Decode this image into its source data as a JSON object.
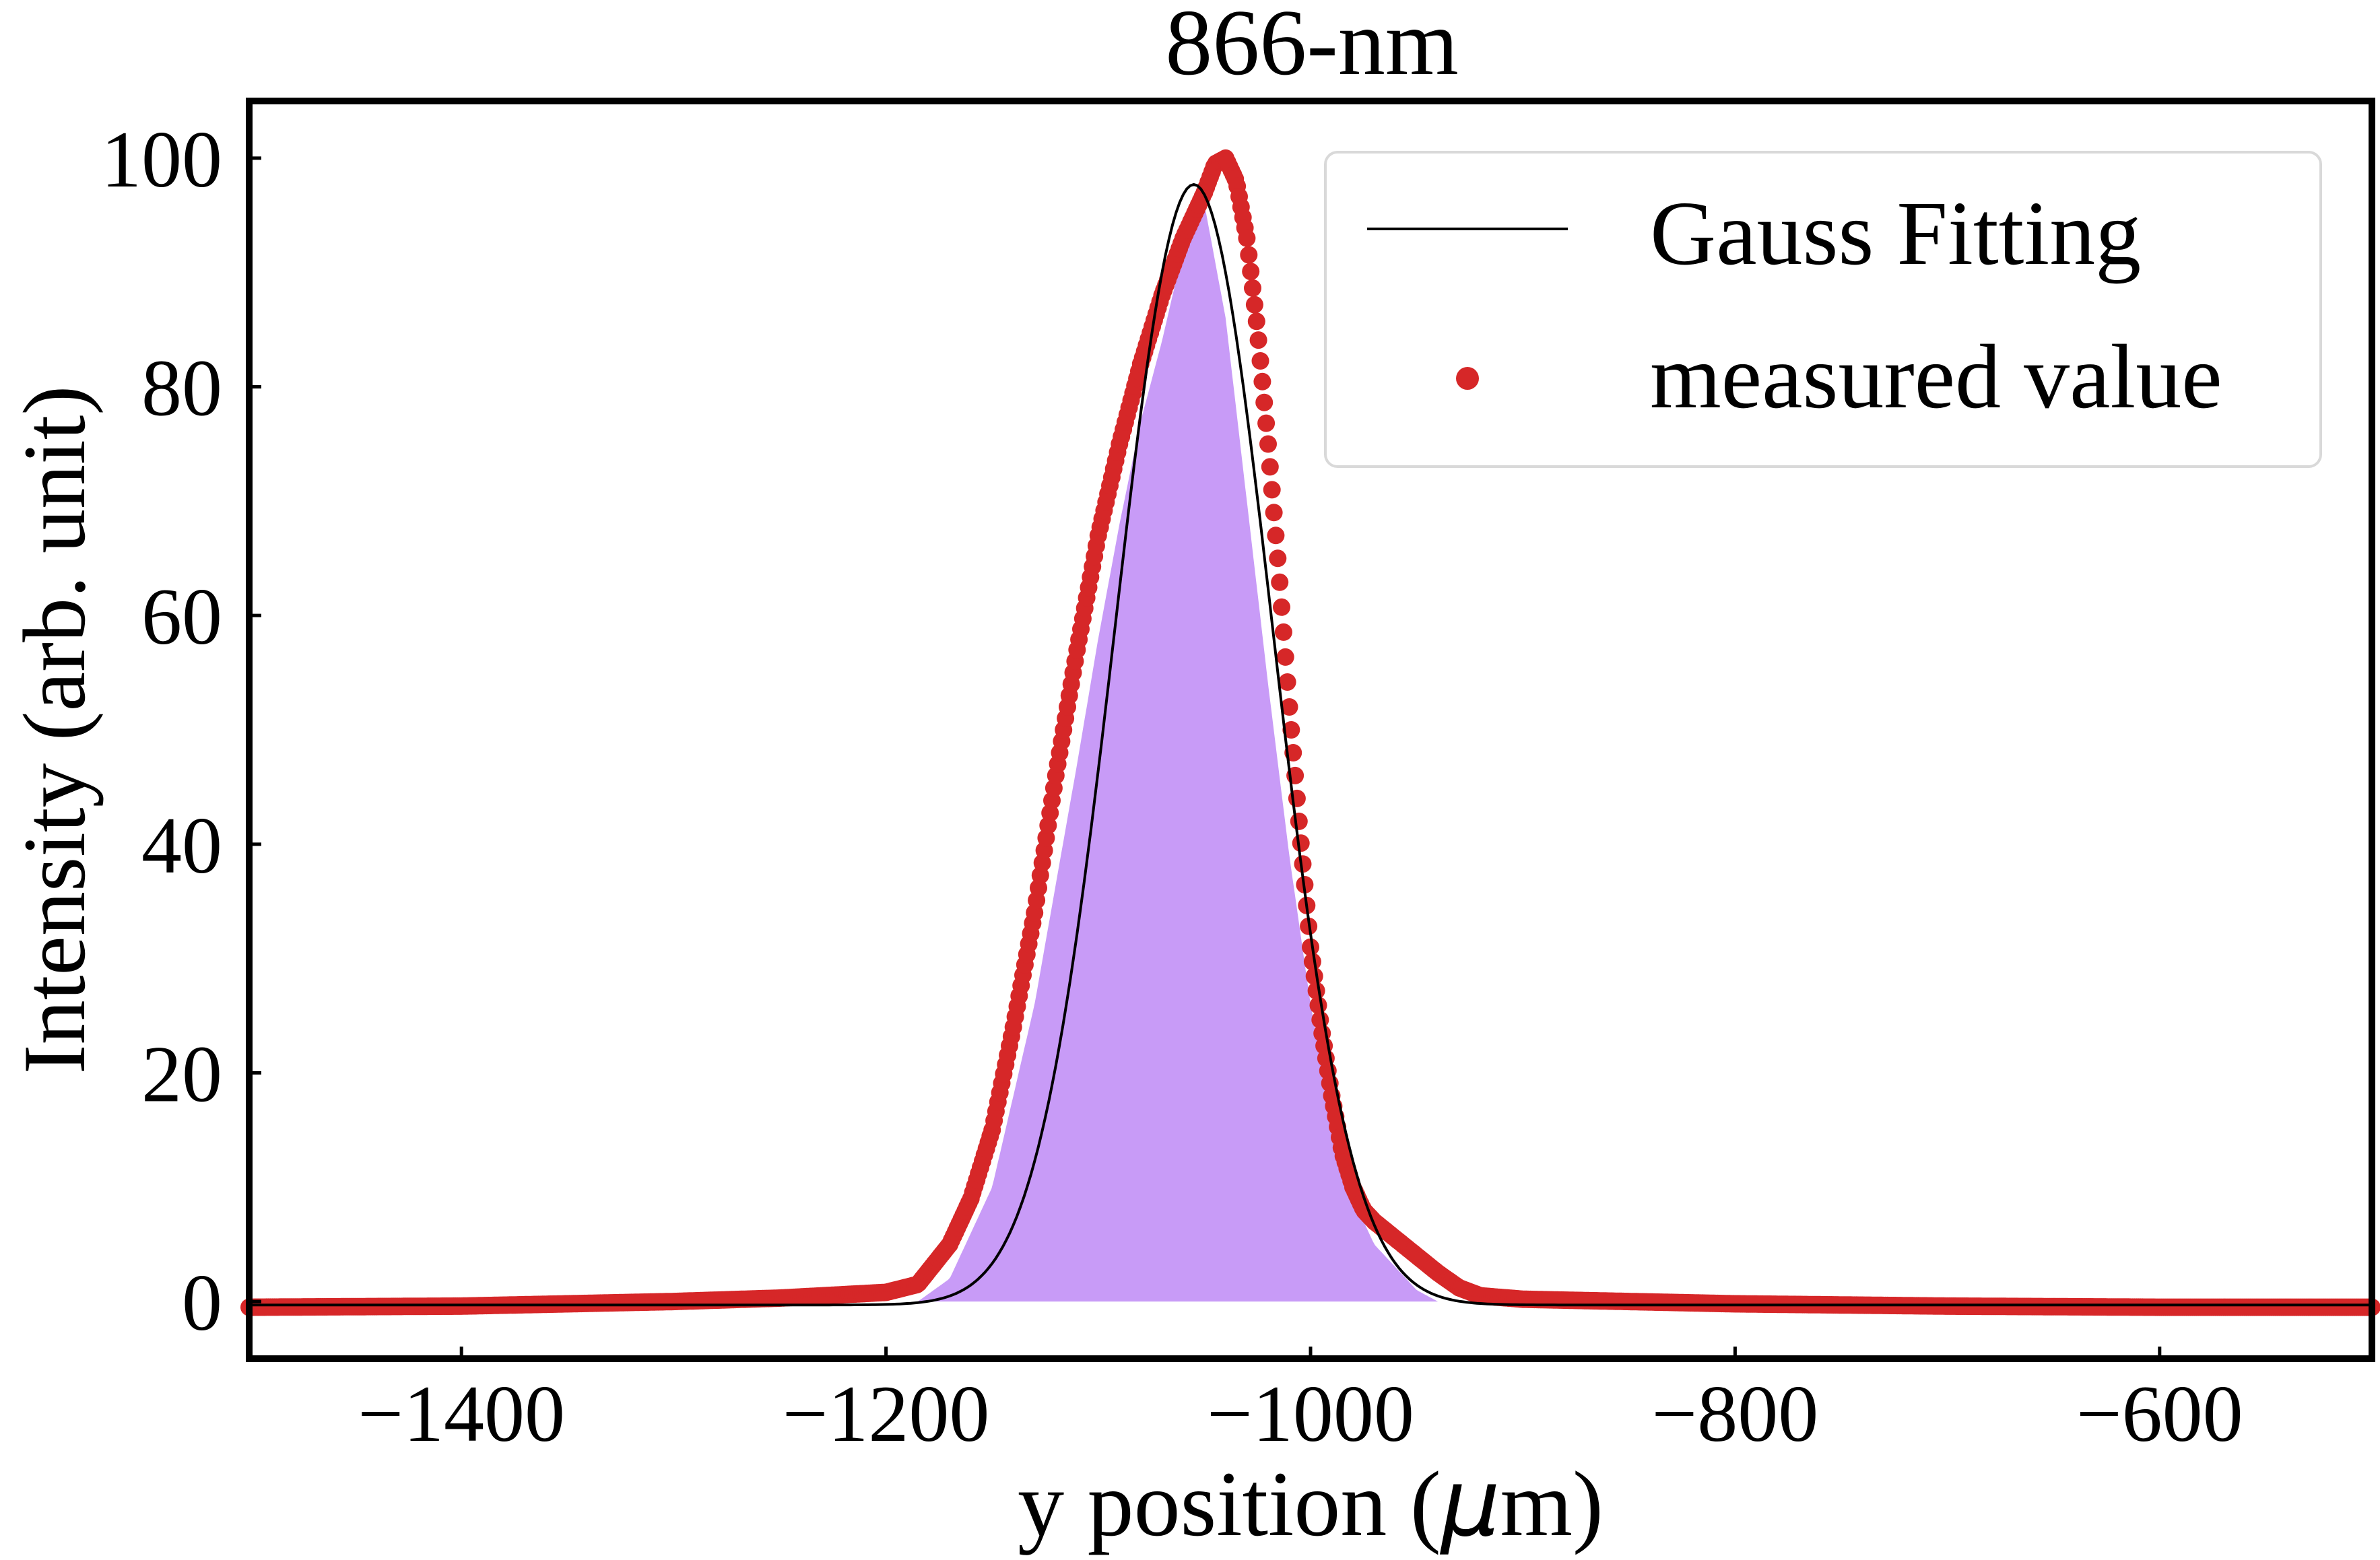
{
  "chart_data": {
    "type": "scatter",
    "title": "866-nm",
    "xlabel": "y position (",
    "xlabel_mu": "μ",
    "xlabel_unit": "m)",
    "ylabel": "Intensity (arb. unit)",
    "xlim": [
      -1500,
      -500
    ],
    "ylim": [
      -5,
      105
    ],
    "xticks": [
      -1400,
      -1200,
      -1000,
      -800,
      -600
    ],
    "yticks": [
      0,
      20,
      40,
      60,
      80,
      100
    ],
    "grid": false,
    "legend": {
      "position": "top-right",
      "entries": [
        {
          "label": "Gauss Fitting",
          "marker": "line"
        },
        {
          "label": "measured value",
          "marker": "dot"
        }
      ]
    },
    "series": [
      {
        "name": "Gauss Fitting",
        "kind": "gaussian",
        "amplitude": 98,
        "center": -1055,
        "sigma": 37,
        "offset": -0.3,
        "color": "#000000"
      },
      {
        "name": "measured value",
        "kind": "points",
        "color": "#d62728",
        "x": [
          -1500,
          -1400,
          -1300,
          -1250,
          -1200,
          -1185,
          -1170,
          -1160,
          -1150,
          -1140,
          -1130,
          -1120,
          -1110,
          -1100,
          -1090,
          -1080,
          -1070,
          -1060,
          -1050,
          -1045,
          -1040,
          -1035,
          -1030,
          -1025,
          -1020,
          -1015,
          -1010,
          -1005,
          -1000,
          -995,
          -990,
          -985,
          -980,
          -975,
          -970,
          -960,
          -950,
          -940,
          -930,
          -920,
          -900,
          -850,
          -800,
          -700,
          -600,
          -500
        ],
        "y": [
          -0.5,
          -0.4,
          0,
          0.3,
          0.8,
          1.5,
          5,
          9,
          15,
          24,
          34,
          46,
          57,
          67,
          75,
          82,
          88,
          93,
          97,
          99.5,
          100,
          98,
          93,
          85,
          75,
          64,
          52,
          41,
          31,
          24,
          18,
          13,
          10,
          8,
          7,
          5.5,
          4,
          2.5,
          1.2,
          0.5,
          0.2,
          0,
          -0.2,
          -0.4,
          -0.5,
          -0.5
        ]
      },
      {
        "name": "",
        "kind": "filled-profile",
        "color": "#c89bf7",
        "overlap_color": "#b5197f",
        "x": [
          -1185,
          -1170,
          -1150,
          -1130,
          -1110,
          -1100,
          -1090,
          -1080,
          -1070,
          -1060,
          -1050,
          -1040,
          -1030,
          -1020,
          -1010,
          -1000,
          -990,
          -980,
          -970,
          -960,
          -950,
          -940
        ],
        "y": [
          0,
          2,
          10,
          26,
          47,
          58,
          68,
          77,
          84,
          92,
          96,
          86,
          70,
          54,
          39,
          26,
          16,
          9,
          5,
          3,
          1,
          0
        ]
      }
    ]
  }
}
